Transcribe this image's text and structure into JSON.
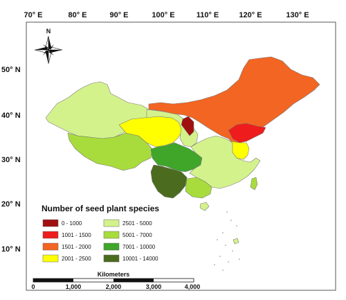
{
  "map": {
    "x_ticks": [
      "70° E",
      "80° E",
      "90° E",
      "100° E",
      "110° E",
      "120° E",
      "130° E"
    ],
    "y_ticks": [
      "50° N",
      "40° N",
      "30° N",
      "20° N",
      "10° N"
    ],
    "compass_label": "N"
  },
  "legend": {
    "title": "Number of seed plant species",
    "classes": [
      {
        "label": "0 - 1000",
        "color": "#a01010"
      },
      {
        "label": "1001 - 1500",
        "color": "#ee1c1c"
      },
      {
        "label": "1501 - 2000",
        "color": "#f26522"
      },
      {
        "label": "2001 - 2500",
        "color": "#ffff00"
      },
      {
        "label": "2501 - 5000",
        "color": "#d4f28c"
      },
      {
        "label": "5001 - 7000",
        "color": "#a8dc3c"
      },
      {
        "label": "7001 - 10000",
        "color": "#3fa62a"
      },
      {
        "label": "10001 - 14000",
        "color": "#4b6b1f"
      }
    ]
  },
  "scale_bar": {
    "title": "Kilometers",
    "ticks": [
      "0",
      "1,000",
      "2,000",
      "3,000",
      "4,000"
    ]
  }
}
